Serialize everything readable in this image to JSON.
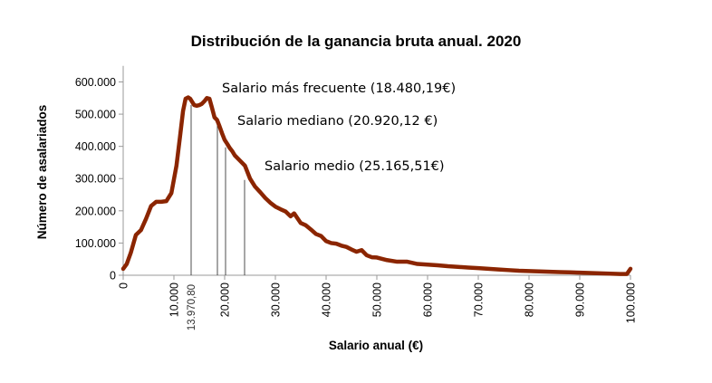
{
  "chart_data": {
    "type": "line",
    "title": "Distribución de la ganancia bruta anual. 2020",
    "xlabel": "Salario anual (€)",
    "ylabel": "Número de asalariados",
    "xlim": [
      0,
      100000
    ],
    "ylim": [
      0,
      650000
    ],
    "color": "#8B2500",
    "x_ticks": [
      0,
      10000,
      20000,
      30000,
      40000,
      50000,
      60000,
      70000,
      80000,
      90000,
      100000
    ],
    "x_tick_labels": [
      "0",
      "10.000",
      "20.000",
      "30.000",
      "40.000",
      "50.000",
      "60.000",
      "70.000",
      "80.000",
      "90.000",
      "100.000"
    ],
    "y_ticks": [
      0,
      100000,
      200000,
      300000,
      400000,
      500000,
      600000
    ],
    "y_tick_labels": [
      "0",
      "100.000",
      "200.000",
      "300.000",
      "400.000",
      "500.000",
      "600.000"
    ],
    "series": [
      {
        "x": [
          0,
          700,
          1500,
          2500,
          3500,
          4500,
          5500,
          6500,
          7500,
          8500,
          9500,
          10500,
          11200,
          11800,
          12300,
          12800,
          13200,
          13600,
          14000,
          14500,
          15000,
          15500,
          16000,
          16500,
          17000,
          17500,
          18000,
          18500,
          19000,
          19500,
          20000,
          20500,
          21000,
          21500,
          22000,
          23000,
          24000,
          25000,
          26000,
          27000,
          28000,
          29000,
          30000,
          31000,
          32000,
          33000,
          33700,
          34300,
          35000,
          36000,
          37000,
          38000,
          39000,
          40000,
          41000,
          42000,
          43000,
          44000,
          45000,
          46000,
          47000,
          48000,
          49000,
          50000,
          52000,
          54000,
          56000,
          58000,
          60000,
          62000,
          64000,
          66000,
          68000,
          70000,
          72000,
          74000,
          76000,
          78000,
          80000,
          82000,
          84000,
          86000,
          88000,
          90000,
          92000,
          94000,
          96000,
          98000,
          99300,
          100000
        ],
        "y": [
          20000,
          35000,
          70000,
          125000,
          140000,
          175000,
          215000,
          228000,
          228000,
          230000,
          255000,
          340000,
          430000,
          510000,
          548000,
          552000,
          548000,
          538000,
          528000,
          526000,
          528000,
          532000,
          540000,
          550000,
          548000,
          520000,
          490000,
          482000,
          462000,
          440000,
          420000,
          408000,
          395000,
          385000,
          372000,
          356000,
          340000,
          300000,
          275000,
          258000,
          240000,
          225000,
          213000,
          205000,
          198000,
          183000,
          192000,
          178000,
          162000,
          155000,
          142000,
          128000,
          122000,
          106000,
          100000,
          98000,
          92000,
          88000,
          80000,
          73000,
          78000,
          62000,
          56000,
          55000,
          47000,
          42000,
          42000,
          35000,
          33000,
          31000,
          28000,
          26000,
          24000,
          22000,
          20000,
          18000,
          16000,
          14000,
          13000,
          12000,
          11000,
          10000,
          9000,
          8000,
          7000,
          6000,
          5000,
          4000,
          4000,
          20000
        ]
      }
    ],
    "reference_lines": [
      {
        "x": 13970.8,
        "label": "13.970,80"
      },
      {
        "x": 18480.19,
        "label": "Salario más frecuente (18.480,19€)"
      },
      {
        "x": 20920.12,
        "label": "Salario mediano (20.920,12 €)"
      },
      {
        "x": 25165.51,
        "label": "Salario medio (25.165,51€)"
      }
    ]
  }
}
